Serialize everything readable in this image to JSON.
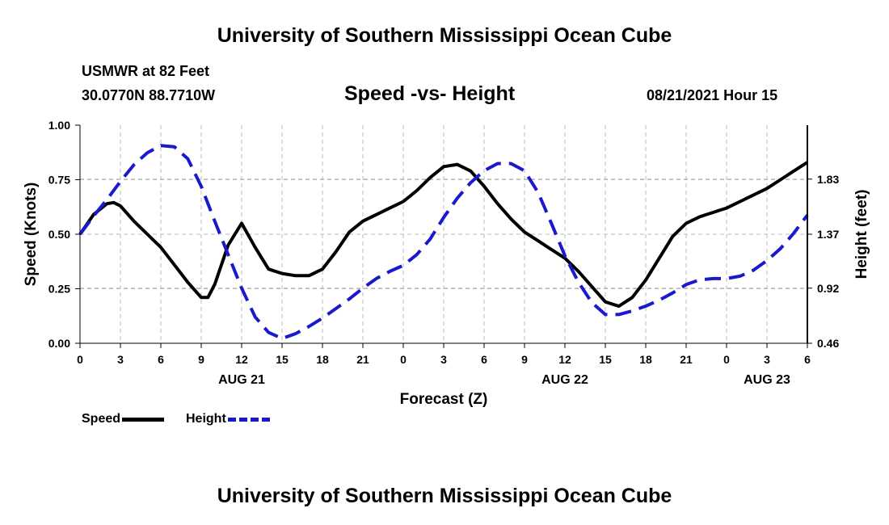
{
  "header": {
    "title": "University of Southern Mississippi Ocean Cube",
    "station": "USMWR at 82 Feet",
    "coordinates": "30.0770N  88.7710W",
    "datetime": "08/21/2021 Hour 15"
  },
  "footer": {
    "title": "University of Southern Mississippi Ocean Cube"
  },
  "legend": {
    "speed_label": "Speed",
    "height_label": "Height"
  },
  "colors": {
    "speed": "#000000",
    "height": "#1a1acc",
    "grid": "#bbbbbb"
  },
  "chart_data": {
    "type": "line",
    "title": "Speed -vs- Height",
    "xlabel": "Forecast (Z)",
    "ylabel": "Speed (Knots)",
    "y2label": "Height (feet)",
    "xlim": [
      0,
      54
    ],
    "ylim": [
      0,
      1
    ],
    "y2lim": [
      0.46,
      2.28
    ],
    "x_ticks": [
      0,
      3,
      6,
      9,
      12,
      15,
      18,
      21,
      24,
      27,
      30,
      33,
      36,
      39,
      42,
      45,
      48,
      51,
      54
    ],
    "x_tick_labels": [
      "0",
      "3",
      "6",
      "9",
      "12",
      "15",
      "18",
      "21",
      "0",
      "3",
      "6",
      "9",
      "12",
      "15",
      "18",
      "21",
      "0",
      "3",
      "6"
    ],
    "date_labels": [
      {
        "x": 12,
        "label": "AUG 21"
      },
      {
        "x": 36,
        "label": "AUG 22"
      },
      {
        "x": 51,
        "label": "AUG 23"
      }
    ],
    "y_ticks": [
      0,
      0.25,
      0.5,
      0.75,
      1
    ],
    "y_tick_labels": [
      "0.00",
      "0.25",
      "0.50",
      "0.75",
      "1.00"
    ],
    "y2_ticks": [
      0.46,
      0.92,
      1.37,
      1.83
    ],
    "y2_tick_labels": [
      "0.46",
      "0.92",
      "1.37",
      "1.83"
    ],
    "grid": true,
    "legend_position": "bottom-left",
    "series": [
      {
        "name": "Speed",
        "axis": "left",
        "style": "solid",
        "x": [
          0,
          1,
          2,
          2.5,
          3,
          4,
          5,
          6,
          7,
          8,
          9,
          9.5,
          10,
          11,
          12,
          13,
          14,
          15,
          16,
          17,
          18,
          19,
          20,
          21,
          22,
          23,
          24,
          25,
          26,
          27,
          28,
          29,
          30,
          31,
          32,
          33,
          34,
          35,
          36,
          37,
          38,
          39,
          40,
          41,
          42,
          43,
          44,
          45,
          46,
          47,
          48,
          49,
          50,
          51,
          52,
          53,
          54
        ],
        "values": [
          0.5,
          0.59,
          0.64,
          0.645,
          0.63,
          0.56,
          0.5,
          0.44,
          0.36,
          0.28,
          0.21,
          0.21,
          0.27,
          0.45,
          0.55,
          0.44,
          0.34,
          0.32,
          0.31,
          0.31,
          0.34,
          0.42,
          0.51,
          0.56,
          0.59,
          0.62,
          0.65,
          0.7,
          0.76,
          0.81,
          0.82,
          0.79,
          0.72,
          0.64,
          0.57,
          0.51,
          0.47,
          0.43,
          0.39,
          0.33,
          0.26,
          0.19,
          0.17,
          0.21,
          0.29,
          0.39,
          0.49,
          0.55,
          0.58,
          0.6,
          0.62,
          0.65,
          0.68,
          0.71,
          0.75,
          0.79,
          0.83
        ]
      },
      {
        "name": "Height",
        "axis": "right",
        "style": "dashed",
        "x": [
          0,
          1,
          2,
          3,
          4,
          5,
          6,
          7,
          8,
          9,
          10,
          11,
          12,
          13,
          14,
          15,
          16,
          17,
          18,
          19,
          20,
          21,
          22,
          23,
          24,
          25,
          26,
          27,
          28,
          29,
          30,
          31,
          32,
          33,
          34,
          35,
          36,
          37,
          38,
          39,
          40,
          41,
          42,
          43,
          44,
          45,
          46,
          47,
          48,
          49,
          50,
          51,
          52,
          53,
          54
        ],
        "values": [
          1.37,
          1.52,
          1.66,
          1.81,
          1.95,
          2.05,
          2.11,
          2.1,
          2.0,
          1.77,
          1.48,
          1.2,
          0.92,
          0.68,
          0.55,
          0.5,
          0.54,
          0.6,
          0.67,
          0.75,
          0.83,
          0.92,
          1.0,
          1.06,
          1.11,
          1.2,
          1.33,
          1.51,
          1.67,
          1.8,
          1.9,
          1.96,
          1.96,
          1.9,
          1.72,
          1.46,
          1.19,
          0.97,
          0.8,
          0.7,
          0.7,
          0.73,
          0.77,
          0.82,
          0.88,
          0.95,
          0.99,
          1.0,
          1.0,
          1.02,
          1.07,
          1.15,
          1.25,
          1.38,
          1.53
        ]
      }
    ]
  }
}
